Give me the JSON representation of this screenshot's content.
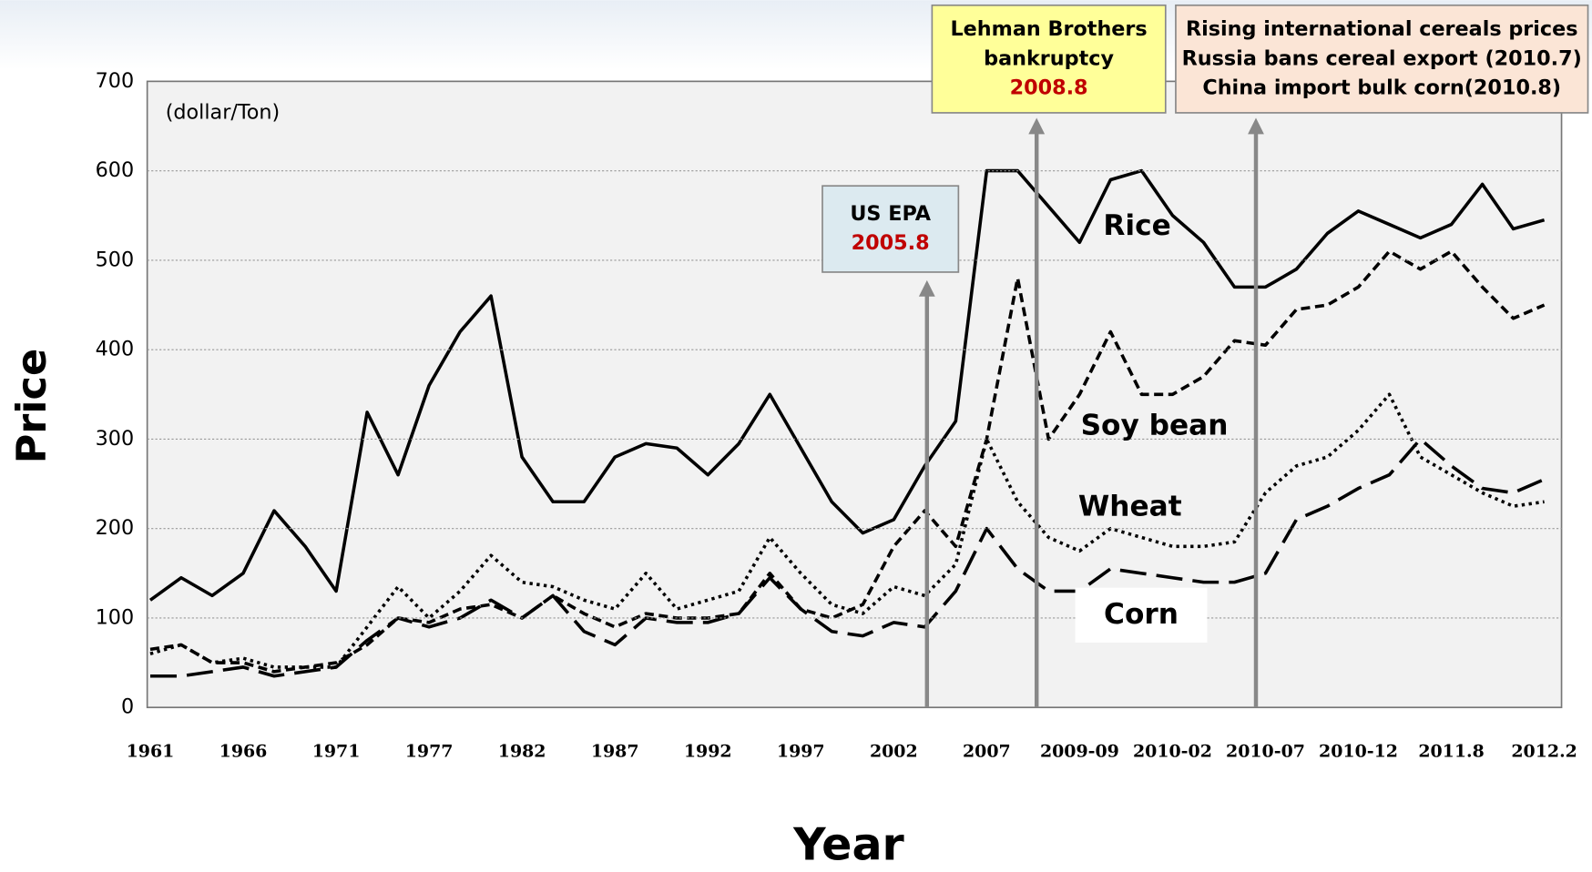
{
  "chart_data": {
    "type": "line",
    "unit_label": "(dollar/Ton)",
    "y_label": "Price",
    "x_label": "Year",
    "categories": [
      "1961",
      null,
      null,
      "1966",
      null,
      null,
      "1971",
      null,
      null,
      "1977",
      null,
      null,
      "1982",
      null,
      null,
      "1987",
      null,
      null,
      "1992",
      null,
      null,
      "1997",
      null,
      null,
      "2002",
      null,
      null,
      "2007",
      null,
      null,
      "2009-09",
      null,
      null,
      "2010-02",
      null,
      null,
      "2010-07",
      null,
      null,
      "2010-12",
      null,
      null,
      "2011.8",
      null,
      null,
      "2012.2"
    ],
    "ylim": [
      0,
      700
    ],
    "yticks": [
      0,
      100,
      200,
      300,
      400,
      500,
      600,
      700
    ],
    "grid": true,
    "series": [
      {
        "name": "Rice",
        "color": "#000000",
        "dash": "solid",
        "values": [
          120,
          145,
          125,
          150,
          220,
          180,
          130,
          330,
          260,
          360,
          420,
          460,
          280,
          230,
          230,
          280,
          295,
          290,
          260,
          295,
          350,
          290,
          230,
          195,
          210,
          270,
          320,
          600,
          600,
          560,
          520,
          590,
          600,
          550,
          520,
          470,
          470,
          490,
          530,
          555,
          540,
          525,
          540,
          585,
          535,
          545
        ]
      },
      {
        "name": "Soy bean",
        "color": "#000000",
        "dash": "short",
        "values": [
          65,
          70,
          50,
          50,
          40,
          45,
          50,
          70,
          100,
          95,
          110,
          115,
          100,
          125,
          105,
          90,
          105,
          100,
          100,
          105,
          150,
          110,
          100,
          115,
          180,
          220,
          180,
          300,
          480,
          300,
          350,
          420,
          350,
          350,
          370,
          410,
          405,
          445,
          450,
          470,
          510,
          490,
          510,
          470,
          435,
          450
        ]
      },
      {
        "name": "Wheat",
        "color": "#000000",
        "dash": "dotted",
        "values": [
          60,
          70,
          50,
          55,
          45,
          45,
          45,
          90,
          135,
          100,
          130,
          170,
          140,
          135,
          120,
          110,
          150,
          110,
          120,
          130,
          190,
          150,
          115,
          105,
          135,
          125,
          160,
          300,
          230,
          190,
          175,
          200,
          190,
          180,
          180,
          185,
          240,
          270,
          280,
          310,
          350,
          280,
          260,
          240,
          225,
          230
        ]
      },
      {
        "name": "Corn",
        "color": "#000000",
        "dash": "long",
        "values": [
          35,
          35,
          40,
          45,
          35,
          40,
          45,
          75,
          100,
          90,
          100,
          120,
          100,
          125,
          85,
          70,
          100,
          95,
          95,
          105,
          145,
          110,
          85,
          80,
          95,
          90,
          130,
          200,
          155,
          130,
          130,
          155,
          150,
          145,
          140,
          140,
          150,
          210,
          225,
          245,
          260,
          300,
          270,
          245,
          240,
          255
        ]
      }
    ],
    "annotations": [
      {
        "lines": [
          "US EPA"
        ],
        "date": "2005.8"
      },
      {
        "lines": [
          "Lehman Brothers",
          "bankruptcy"
        ],
        "date": "2008.8"
      },
      {
        "lines": [
          "Rising international cereals prices",
          "Russia bans cereal export (2010.7)",
          "China import bulk corn(2010.8)"
        ]
      }
    ]
  }
}
